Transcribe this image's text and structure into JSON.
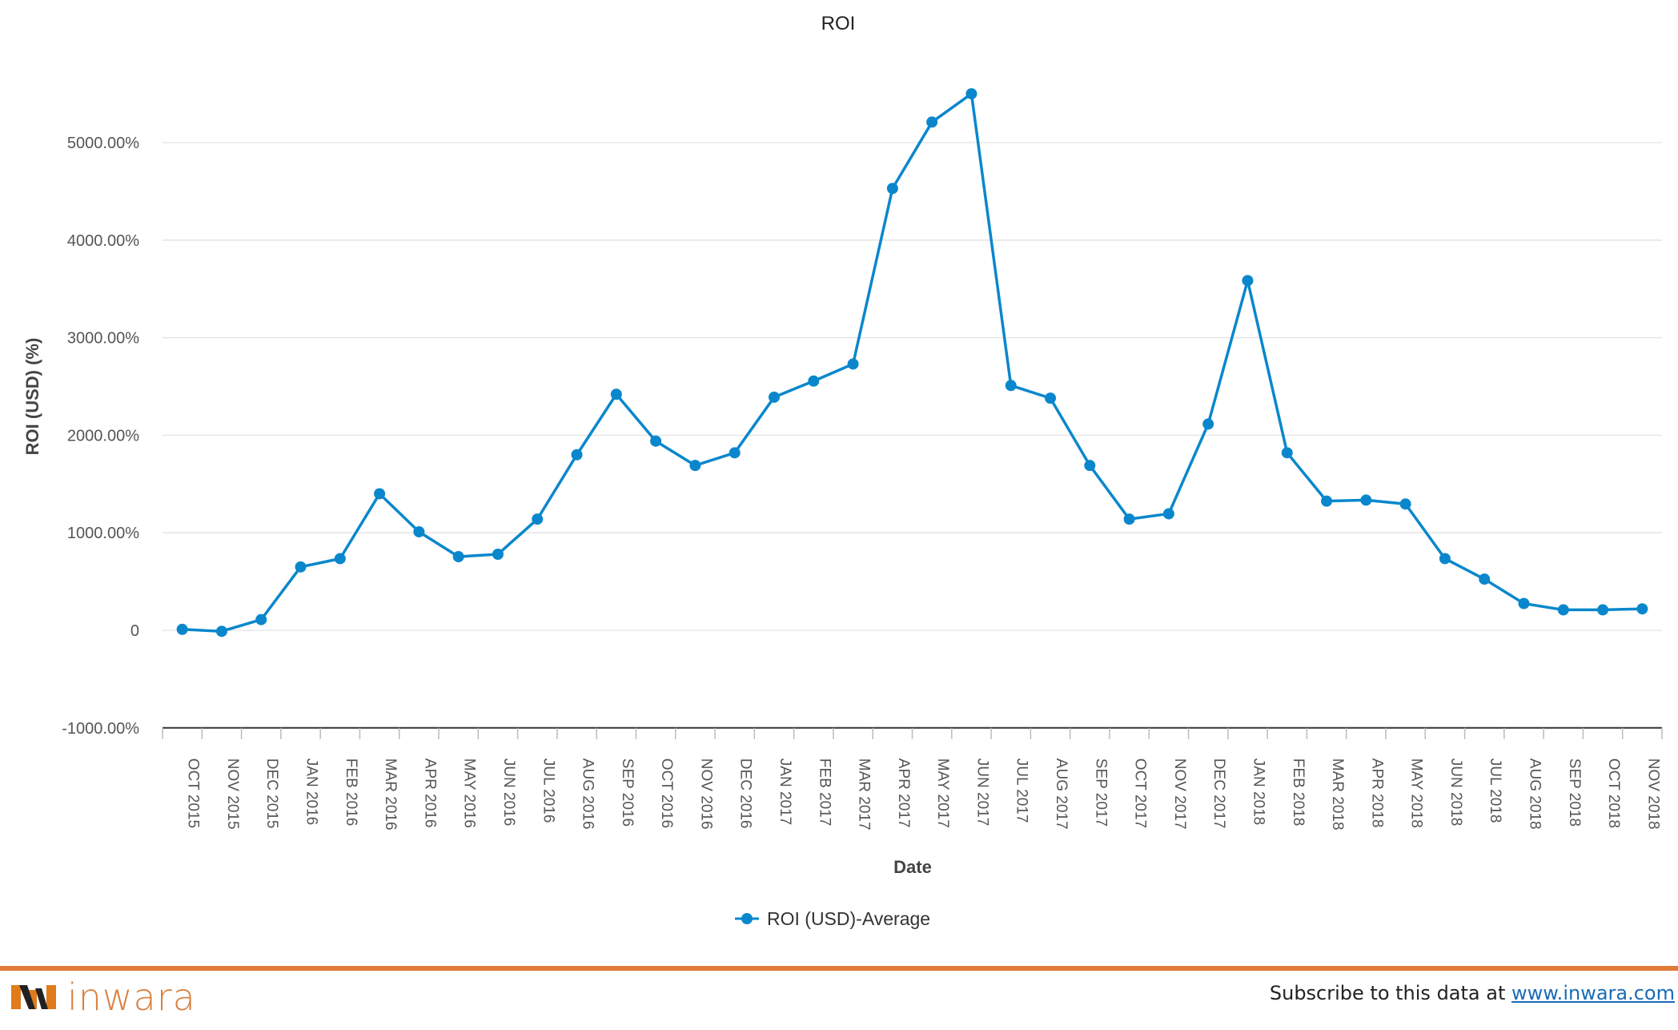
{
  "chart_data": {
    "type": "line",
    "title": "ROI",
    "xlabel": "Date",
    "ylabel": "ROI (USD) (%)",
    "ylim": [
      -1000,
      6000
    ],
    "yticks": [
      -1000,
      0,
      1000,
      2000,
      3000,
      4000,
      5000
    ],
    "ytick_labels": [
      "-1000.00%",
      "0",
      "1000.00%",
      "2000.00%",
      "3000.00%",
      "4000.00%",
      "5000.00%"
    ],
    "grid": true,
    "legend_position": "bottom-center",
    "categories": [
      "OCT 2015",
      "NOV 2015",
      "DEC 2015",
      "JAN 2016",
      "FEB 2016",
      "MAR 2016",
      "APR 2016",
      "MAY 2016",
      "JUN 2016",
      "JUL 2016",
      "AUG 2016",
      "SEP 2016",
      "OCT 2016",
      "NOV 2016",
      "DEC 2016",
      "JAN 2017",
      "FEB 2017",
      "MAR 2017",
      "APR 2017",
      "MAY 2017",
      "JUN 2017",
      "JUL 2017",
      "AUG 2017",
      "SEP 2017",
      "OCT 2017",
      "NOV 2017",
      "DEC 2017",
      "JAN 2018",
      "FEB 2018",
      "MAR 2018",
      "APR 2018",
      "MAY 2018",
      "JUN 2018",
      "JUL 2018",
      "AUG 2018",
      "SEP 2018",
      "OCT 2018",
      "NOV 2018"
    ],
    "series": [
      {
        "name": "ROI (USD)-Average",
        "color": "#0a87cc",
        "values": [
          10,
          -10,
          110,
          650,
          735,
          1400,
          1010,
          755,
          780,
          1140,
          1800,
          2420,
          1940,
          1690,
          1820,
          2390,
          2555,
          2730,
          4530,
          5210,
          5500,
          2510,
          2380,
          1690,
          1140,
          1195,
          2115,
          3585,
          1820,
          1325,
          1335,
          1295,
          735,
          525,
          275,
          210,
          210,
          220
        ]
      }
    ]
  },
  "footer": {
    "logo_text": "inwara",
    "subscribe_text": "Subscribe to this data at ",
    "subscribe_link": "www.inwara.com",
    "accent_color": "#e07b39"
  }
}
